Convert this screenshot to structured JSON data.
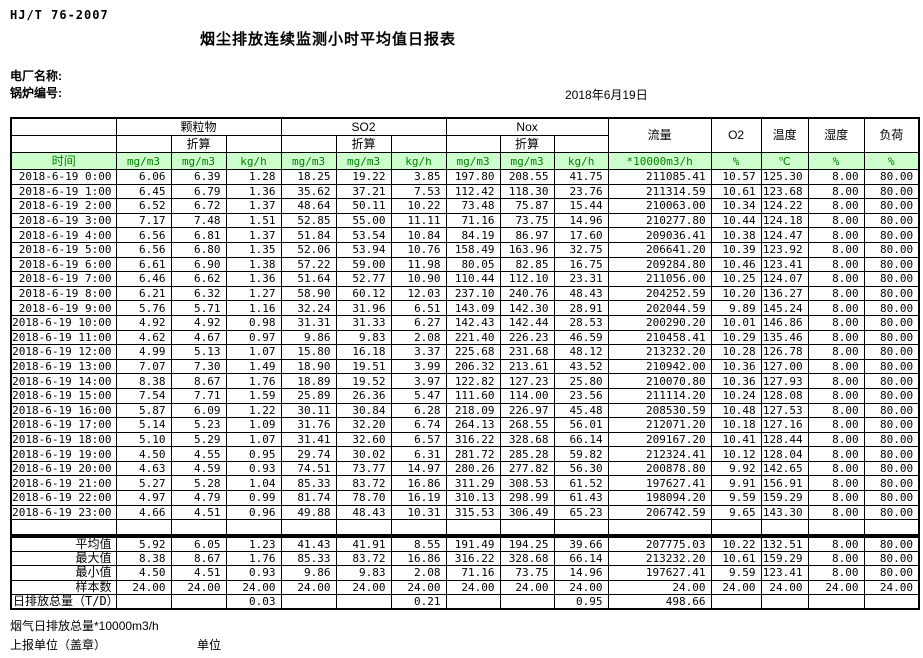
{
  "page": {
    "standard_code": "HJ/T 76-2007",
    "title": "烟尘排放连续监测小时平均值日报表",
    "plant_name_label": "电厂名称:",
    "boiler_no_label": "锅炉编号:",
    "report_date": "2018年6月19日"
  },
  "colors": {
    "header_row_bg": "#ccffcc",
    "header_row_text": "#008000",
    "table_border": "#000000"
  },
  "table": {
    "time_label": "时间",
    "groups": {
      "particulate": "颗粒物",
      "so2": "SO2",
      "nox": "Nox",
      "converted": "折算",
      "flow": "流量",
      "o2": "O2",
      "temperature": "温度",
      "humidity": "湿度",
      "load": "负荷"
    },
    "units": [
      "mg/m3",
      "mg/m3",
      "kg/h",
      "mg/m3",
      "mg/m3",
      "kg/h",
      "mg/m3",
      "mg/m3",
      "kg/h",
      "*10000m3/h",
      "%",
      "℃",
      "%",
      "%"
    ],
    "rows": [
      [
        "2018-6-19 0:00",
        "6.06",
        "6.39",
        "1.28",
        "18.25",
        "19.22",
        "3.85",
        "197.80",
        "208.55",
        "41.75",
        "211085.41",
        "10.57",
        "125.30",
        "8.00",
        "80.00"
      ],
      [
        "2018-6-19 1:00",
        "6.45",
        "6.79",
        "1.36",
        "35.62",
        "37.21",
        "7.53",
        "112.42",
        "118.30",
        "23.76",
        "211314.59",
        "10.61",
        "123.68",
        "8.00",
        "80.00"
      ],
      [
        "2018-6-19 2:00",
        "6.52",
        "6.72",
        "1.37",
        "48.64",
        "50.11",
        "10.22",
        "73.48",
        "75.87",
        "15.44",
        "210063.00",
        "10.34",
        "124.22",
        "8.00",
        "80.00"
      ],
      [
        "2018-6-19 3:00",
        "7.17",
        "7.48",
        "1.51",
        "52.85",
        "55.00",
        "11.11",
        "71.16",
        "73.75",
        "14.96",
        "210277.80",
        "10.44",
        "124.18",
        "8.00",
        "80.00"
      ],
      [
        "2018-6-19 4:00",
        "6.56",
        "6.81",
        "1.37",
        "51.84",
        "53.54",
        "10.84",
        "84.19",
        "86.97",
        "17.60",
        "209036.41",
        "10.38",
        "124.47",
        "8.00",
        "80.00"
      ],
      [
        "2018-6-19 5:00",
        "6.56",
        "6.80",
        "1.35",
        "52.06",
        "53.94",
        "10.76",
        "158.49",
        "163.96",
        "32.75",
        "206641.20",
        "10.39",
        "123.92",
        "8.00",
        "80.00"
      ],
      [
        "2018-6-19 6:00",
        "6.61",
        "6.90",
        "1.38",
        "57.22",
        "59.00",
        "11.98",
        "80.05",
        "82.85",
        "16.75",
        "209284.80",
        "10.46",
        "123.41",
        "8.00",
        "80.00"
      ],
      [
        "2018-6-19 7:00",
        "6.46",
        "6.62",
        "1.36",
        "51.64",
        "52.77",
        "10.90",
        "110.44",
        "112.10",
        "23.31",
        "211056.00",
        "10.25",
        "124.07",
        "8.00",
        "80.00"
      ],
      [
        "2018-6-19 8:00",
        "6.21",
        "6.32",
        "1.27",
        "58.90",
        "60.12",
        "12.03",
        "237.10",
        "240.76",
        "48.43",
        "204252.59",
        "10.20",
        "136.27",
        "8.00",
        "80.00"
      ],
      [
        "2018-6-19 9:00",
        "5.76",
        "5.71",
        "1.16",
        "32.24",
        "31.96",
        "6.51",
        "143.09",
        "142.30",
        "28.91",
        "202044.59",
        "9.89",
        "145.24",
        "8.00",
        "80.00"
      ],
      [
        "2018-6-19 10:00",
        "4.92",
        "4.92",
        "0.98",
        "31.31",
        "31.33",
        "6.27",
        "142.43",
        "142.44",
        "28.53",
        "200290.20",
        "10.01",
        "146.86",
        "8.00",
        "80.00"
      ],
      [
        "2018-6-19 11:00",
        "4.62",
        "4.67",
        "0.97",
        "9.86",
        "9.83",
        "2.08",
        "221.40",
        "226.23",
        "46.59",
        "210458.41",
        "10.29",
        "135.46",
        "8.00",
        "80.00"
      ],
      [
        "2018-6-19 12:00",
        "4.99",
        "5.13",
        "1.07",
        "15.80",
        "16.18",
        "3.37",
        "225.68",
        "231.68",
        "48.12",
        "213232.20",
        "10.28",
        "126.78",
        "8.00",
        "80.00"
      ],
      [
        "2018-6-19 13:00",
        "7.07",
        "7.30",
        "1.49",
        "18.90",
        "19.51",
        "3.99",
        "206.32",
        "213.61",
        "43.52",
        "210942.00",
        "10.36",
        "127.00",
        "8.00",
        "80.00"
      ],
      [
        "2018-6-19 14:00",
        "8.38",
        "8.67",
        "1.76",
        "18.89",
        "19.52",
        "3.97",
        "122.82",
        "127.23",
        "25.80",
        "210070.80",
        "10.36",
        "127.93",
        "8.00",
        "80.00"
      ],
      [
        "2018-6-19 15:00",
        "7.54",
        "7.71",
        "1.59",
        "25.89",
        "26.36",
        "5.47",
        "111.60",
        "114.00",
        "23.56",
        "211114.20",
        "10.24",
        "128.08",
        "8.00",
        "80.00"
      ],
      [
        "2018-6-19 16:00",
        "5.87",
        "6.09",
        "1.22",
        "30.11",
        "30.84",
        "6.28",
        "218.09",
        "226.97",
        "45.48",
        "208530.59",
        "10.48",
        "127.53",
        "8.00",
        "80.00"
      ],
      [
        "2018-6-19 17:00",
        "5.14",
        "5.23",
        "1.09",
        "31.76",
        "32.20",
        "6.74",
        "264.13",
        "268.55",
        "56.01",
        "212071.20",
        "10.18",
        "127.16",
        "8.00",
        "80.00"
      ],
      [
        "2018-6-19 18:00",
        "5.10",
        "5.29",
        "1.07",
        "31.41",
        "32.60",
        "6.57",
        "316.22",
        "328.68",
        "66.14",
        "209167.20",
        "10.41",
        "128.44",
        "8.00",
        "80.00"
      ],
      [
        "2018-6-19 19:00",
        "4.50",
        "4.55",
        "0.95",
        "29.74",
        "30.02",
        "6.31",
        "281.72",
        "285.28",
        "59.82",
        "212324.41",
        "10.12",
        "128.04",
        "8.00",
        "80.00"
      ],
      [
        "2018-6-19 20:00",
        "4.63",
        "4.59",
        "0.93",
        "74.51",
        "73.77",
        "14.97",
        "280.26",
        "277.82",
        "56.30",
        "200878.80",
        "9.92",
        "142.65",
        "8.00",
        "80.00"
      ],
      [
        "2018-6-19 21:00",
        "5.27",
        "5.28",
        "1.04",
        "85.33",
        "83.72",
        "16.86",
        "311.29",
        "308.53",
        "61.52",
        "197627.41",
        "9.91",
        "156.91",
        "8.00",
        "80.00"
      ],
      [
        "2018-6-19 22:00",
        "4.97",
        "4.79",
        "0.99",
        "81.74",
        "78.70",
        "16.19",
        "310.13",
        "298.99",
        "61.43",
        "198094.20",
        "9.59",
        "159.29",
        "8.00",
        "80.00"
      ],
      [
        "2018-6-19 23:00",
        "4.66",
        "4.51",
        "0.96",
        "49.88",
        "48.43",
        "10.31",
        "315.53",
        "306.49",
        "65.23",
        "206742.59",
        "9.65",
        "143.30",
        "8.00",
        "80.00"
      ]
    ]
  },
  "summary": {
    "rows": [
      [
        "平均值",
        "5.92",
        "6.05",
        "1.23",
        "41.43",
        "41.91",
        "8.55",
        "191.49",
        "194.25",
        "39.66",
        "207775.03",
        "10.22",
        "132.51",
        "8.00",
        "80.00"
      ],
      [
        "最大值",
        "8.38",
        "8.67",
        "1.76",
        "85.33",
        "83.72",
        "16.86",
        "316.22",
        "328.68",
        "66.14",
        "213232.20",
        "10.61",
        "159.29",
        "8.00",
        "80.00"
      ],
      [
        "最小值",
        "4.50",
        "4.51",
        "0.93",
        "9.86",
        "9.83",
        "2.08",
        "71.16",
        "73.75",
        "14.96",
        "197627.41",
        "9.59",
        "123.41",
        "8.00",
        "80.00"
      ],
      [
        "样本数",
        "24.00",
        "24.00",
        "24.00",
        "24.00",
        "24.00",
        "24.00",
        "24.00",
        "24.00",
        "24.00",
        "24.00",
        "24.00",
        "24.00",
        "24.00",
        "24.00"
      ],
      [
        "日排放总量（T/D）",
        "",
        "",
        "0.03",
        "",
        "",
        "0.21",
        "",
        "",
        "0.95",
        "498.66",
        "",
        "",
        "",
        ""
      ]
    ]
  },
  "footer": {
    "flue_gas_note": "烟气日排放总量*10000m3/h",
    "report_unit_label": "上报单位（盖章）",
    "unit_label": "单位"
  }
}
